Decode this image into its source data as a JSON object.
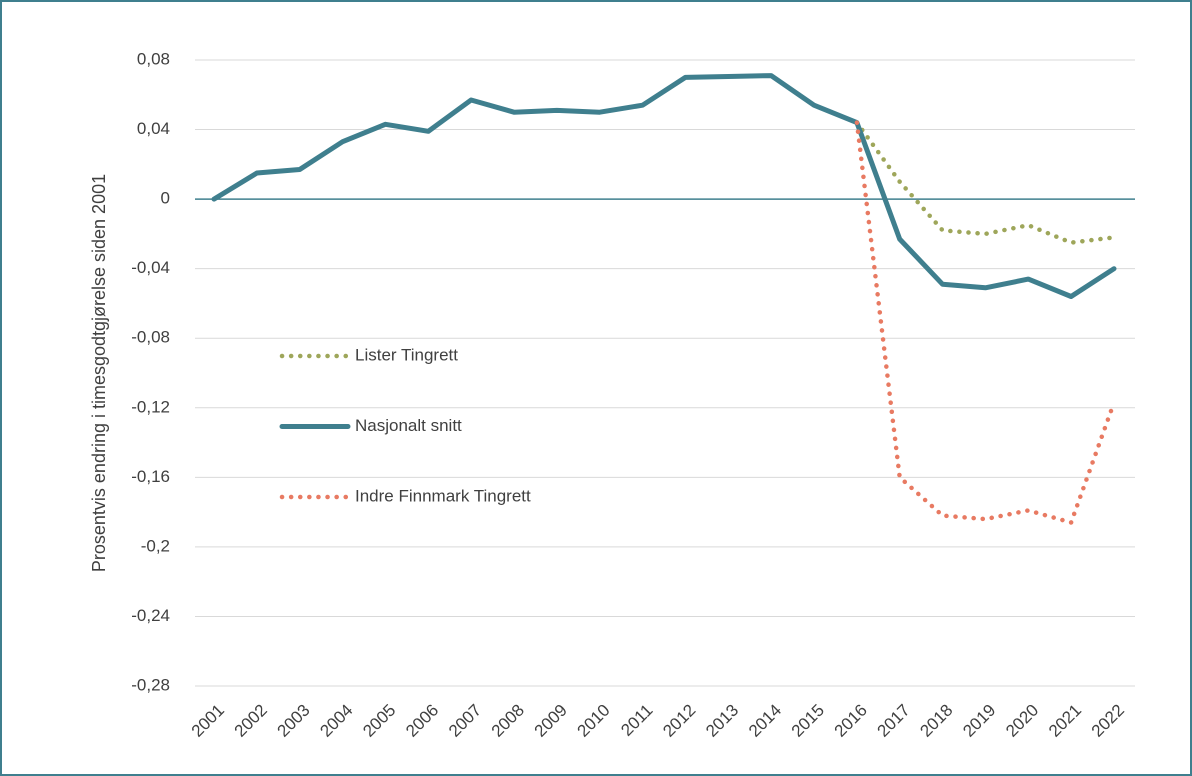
{
  "chart_data": {
    "type": "line",
    "y_label": "Prosentvis endring i timesgodtgjørelse siden 2001",
    "categories": [
      "2001",
      "2002",
      "2003",
      "2004",
      "2005",
      "2006",
      "2007",
      "2008",
      "2009",
      "2010",
      "2011",
      "2012",
      "2013",
      "2014",
      "2015",
      "2016",
      "2017",
      "2018",
      "2019",
      "2020",
      "2021",
      "2022"
    ],
    "series": [
      {
        "name": "Lister Tingrett",
        "color": "#9ea65a",
        "style": "dotted",
        "values": [
          null,
          null,
          null,
          null,
          null,
          null,
          null,
          null,
          null,
          null,
          null,
          null,
          null,
          null,
          null,
          0.044,
          0.01,
          -0.018,
          -0.02,
          -0.015,
          -0.025,
          -0.022
        ]
      },
      {
        "name": "Nasjonalt snitt",
        "color": "#3f7f8e",
        "style": "solid",
        "values": [
          0,
          0.015,
          0.017,
          0.033,
          0.043,
          0.039,
          0.057,
          0.05,
          0.051,
          0.05,
          0.054,
          0.07,
          0.0705,
          0.071,
          0.054,
          0.044,
          -0.023,
          -0.049,
          -0.051,
          -0.046,
          -0.056,
          -0.04
        ]
      },
      {
        "name": "Indre Finnmark Tingrett",
        "color": "#e87a62",
        "style": "dotted",
        "values": [
          null,
          null,
          null,
          null,
          null,
          null,
          null,
          null,
          null,
          null,
          null,
          null,
          null,
          null,
          null,
          0.044,
          -0.16,
          -0.182,
          -0.184,
          -0.179,
          -0.186,
          -0.117
        ]
      }
    ],
    "ylim": [
      -0.28,
      0.08
    ],
    "yticks": [
      {
        "value": -0.28,
        "label": "-0,28"
      },
      {
        "value": -0.24,
        "label": "-0,24"
      },
      {
        "value": -0.2,
        "label": "-0,2"
      },
      {
        "value": -0.16,
        "label": "-0,16"
      },
      {
        "value": -0.12,
        "label": "-0,12"
      },
      {
        "value": -0.08,
        "label": "-0,08"
      },
      {
        "value": -0.04,
        "label": "-0,04"
      },
      0,
      {
        "value": 0.04,
        "label": "0,04"
      },
      {
        "value": 0.08,
        "label": "0,08"
      }
    ],
    "grid": true,
    "legend": "left"
  }
}
